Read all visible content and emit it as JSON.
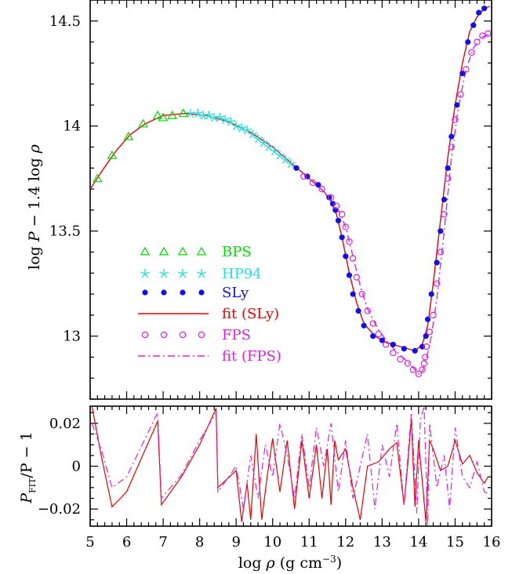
{
  "chart_data": [
    {
      "type": "line",
      "ylabel": "log P − 1.4 log ρ",
      "xlim": [
        5,
        16
      ],
      "ylim": [
        12.7,
        14.6
      ],
      "xticks": [
        5,
        6,
        7,
        8,
        9,
        10,
        11,
        12,
        13,
        14,
        15,
        16
      ],
      "yticks": [
        13,
        13.5,
        14,
        14.5
      ],
      "ytick_labels": [
        "13",
        "13.5",
        "14",
        "14.5"
      ],
      "series": [
        {
          "name": "BPS",
          "marker": "triangle",
          "color": "#00dd00",
          "x": [
            5.2,
            5.6,
            6.05,
            6.45,
            6.85,
            7.0,
            7.25,
            7.55
          ],
          "y": [
            13.75,
            13.86,
            13.95,
            14.01,
            14.05,
            14.04,
            14.05,
            14.06
          ]
        },
        {
          "name": "HP94",
          "marker": "star",
          "color": "#22e0e0",
          "x": [
            7.75,
            7.95,
            8.1,
            8.25,
            8.4,
            8.55,
            8.7,
            8.85,
            9.0,
            9.15,
            9.3,
            9.45,
            9.6,
            9.75,
            9.9,
            10.05,
            10.2,
            10.35,
            10.5
          ],
          "y": [
            14.06,
            14.06,
            14.05,
            14.05,
            14.04,
            14.04,
            14.03,
            14.02,
            14.0,
            13.99,
            13.98,
            13.96,
            13.94,
            13.92,
            13.9,
            13.88,
            13.86,
            13.84,
            13.82
          ]
        },
        {
          "name": "SLy",
          "marker": "filled-circle",
          "color": "#1010ee",
          "x": [
            10.65,
            10.95,
            11.25,
            11.55,
            11.65,
            11.72,
            11.8,
            11.9,
            12.0,
            12.1,
            12.2,
            12.35,
            12.5,
            12.75,
            13.0,
            13.3,
            13.6,
            13.9,
            14.1,
            14.2,
            14.25,
            14.35,
            14.5,
            14.6,
            14.7,
            14.8,
            14.9,
            15.05,
            15.2,
            15.35,
            15.5,
            15.65,
            15.8
          ],
          "y": [
            13.8,
            13.76,
            13.72,
            13.66,
            13.63,
            13.6,
            13.55,
            13.47,
            13.38,
            13.29,
            13.2,
            13.12,
            13.05,
            13.0,
            12.98,
            12.96,
            12.94,
            12.93,
            12.95,
            13.0,
            13.08,
            13.2,
            13.35,
            13.5,
            13.65,
            13.8,
            13.95,
            14.1,
            14.25,
            14.4,
            14.48,
            14.54,
            14.56
          ]
        },
        {
          "name": "fit (SLy)",
          "marker": "none",
          "style": "solid",
          "color": "#ee0000",
          "x": [
            5.0,
            5.3,
            5.7,
            6.1,
            6.5,
            7.0,
            7.6,
            8.2,
            8.8,
            9.4,
            10.0,
            10.6,
            11.0,
            11.4,
            11.6,
            11.75,
            11.9,
            12.1,
            12.3,
            12.5,
            12.8,
            13.1,
            13.5,
            13.9,
            14.1,
            14.25,
            14.4,
            14.6,
            14.8,
            15.0,
            15.2,
            15.4,
            15.6,
            15.8,
            15.95
          ],
          "y": [
            13.7,
            13.78,
            13.88,
            13.96,
            14.01,
            14.05,
            14.06,
            14.05,
            14.02,
            13.97,
            13.9,
            13.81,
            13.75,
            13.69,
            13.64,
            13.58,
            13.47,
            13.3,
            13.16,
            13.06,
            13.0,
            12.97,
            12.95,
            12.93,
            12.96,
            13.05,
            13.25,
            13.55,
            13.85,
            14.1,
            14.3,
            14.45,
            14.52,
            14.56,
            14.57
          ]
        },
        {
          "name": "FPS",
          "marker": "open-circle",
          "color": "#e020e0",
          "x": [
            10.85,
            11.1,
            11.35,
            11.6,
            11.75,
            11.9,
            12.0,
            12.1,
            12.2,
            12.3,
            12.45,
            12.6,
            12.75,
            12.9,
            13.1,
            13.3,
            13.5,
            13.7,
            13.85,
            14.0,
            14.1,
            14.15,
            14.18,
            14.22,
            14.3,
            14.4,
            14.5,
            14.6,
            14.7,
            14.8,
            14.9,
            15.0,
            15.15,
            15.3,
            15.45,
            15.6,
            15.75,
            15.9
          ],
          "y": [
            13.76,
            13.73,
            13.7,
            13.66,
            13.62,
            13.58,
            13.52,
            13.45,
            13.37,
            13.28,
            13.2,
            13.12,
            13.06,
            13.01,
            12.96,
            12.92,
            12.89,
            12.87,
            12.84,
            12.82,
            12.84,
            12.87,
            12.9,
            12.95,
            13.02,
            13.1,
            13.25,
            13.4,
            13.58,
            13.75,
            13.9,
            14.03,
            14.15,
            14.27,
            14.35,
            14.4,
            14.43,
            14.44
          ]
        },
        {
          "name": "fit (FPS)",
          "marker": "none",
          "style": "dashdot",
          "color": "#e020e0",
          "x": [
            10.6,
            11.0,
            11.4,
            11.8,
            12.0,
            12.2,
            12.4,
            12.6,
            12.9,
            13.2,
            13.5,
            13.8,
            14.0,
            14.1,
            14.2,
            14.35,
            14.5,
            14.7,
            14.9,
            15.1,
            15.3,
            15.5,
            15.7,
            15.95
          ],
          "y": [
            13.81,
            13.75,
            13.69,
            13.6,
            13.52,
            13.38,
            13.24,
            13.13,
            13.03,
            12.96,
            12.91,
            12.86,
            12.82,
            12.83,
            12.88,
            13.0,
            13.18,
            13.5,
            13.85,
            14.1,
            14.27,
            14.37,
            14.42,
            14.44
          ]
        }
      ]
    },
    {
      "type": "line",
      "xlabel": "log ρ (g cm⁻³)",
      "ylabel": "P_FIT / P − 1",
      "xlim": [
        5,
        16
      ],
      "ylim": [
        -0.028,
        0.028
      ],
      "xticks": [
        5,
        6,
        7,
        8,
        9,
        10,
        11,
        12,
        13,
        14,
        15,
        16
      ],
      "xtick_labels": [
        "5",
        "6",
        "7",
        "8",
        "9",
        "10",
        "11",
        "12",
        "13",
        "14",
        "15",
        "16"
      ],
      "yticks": [
        -0.02,
        0,
        0.02
      ],
      "ytick_labels": [
        "−0.02",
        "0",
        "0.02"
      ],
      "series": [
        {
          "name": "fit (SLy)",
          "style": "solid",
          "color": "#ee0000",
          "x": [
            5.05,
            5.3,
            5.6,
            6.0,
            6.85,
            6.95,
            7.5,
            8.0,
            8.45,
            8.5,
            9.0,
            9.15,
            9.3,
            9.4,
            9.55,
            9.7,
            9.85,
            10.0,
            10.2,
            10.4,
            10.6,
            10.8,
            11.0,
            11.2,
            11.35,
            11.5,
            11.6,
            11.7,
            11.8,
            12.0,
            12.2,
            12.4,
            12.6,
            12.9,
            13.2,
            13.4,
            13.6,
            13.7,
            13.8,
            13.9,
            14.0,
            14.2,
            14.3,
            14.4,
            14.6,
            14.8,
            15.0,
            15.2,
            15.4,
            15.6,
            15.8,
            15.9
          ],
          "y": [
            0.028,
            0.005,
            -0.019,
            -0.012,
            0.021,
            -0.018,
            -0.005,
            0.01,
            0.027,
            -0.01,
            -0.002,
            -0.026,
            -0.008,
            -0.025,
            0.015,
            -0.025,
            -0.005,
            0.013,
            -0.012,
            0.012,
            -0.02,
            0.012,
            -0.015,
            0.01,
            -0.015,
            0.008,
            -0.018,
            0.012,
            0.003,
            0.008,
            -0.01,
            -0.025,
            0.0,
            0.002,
            0.008,
            0.011,
            -0.018,
            0.0,
            0.022,
            -0.019,
            0.012,
            -0.026,
            0.012,
            0.008,
            -0.002,
            0.0,
            0.012,
            0.001,
            0.005,
            -0.003,
            -0.008,
            -0.005
          ]
        },
        {
          "name": "fit (FPS)",
          "style": "dashdot",
          "color": "#e020e0",
          "x": [
            5.05,
            5.3,
            5.6,
            6.0,
            6.85,
            6.95,
            7.5,
            8.0,
            8.45,
            8.5,
            9.0,
            9.2,
            9.4,
            9.6,
            9.8,
            10.0,
            10.2,
            10.4,
            10.6,
            10.8,
            11.0,
            11.2,
            11.4,
            11.6,
            11.8,
            12.0,
            12.2,
            12.4,
            12.6,
            12.8,
            13.0,
            13.2,
            13.4,
            13.6,
            13.8,
            13.95,
            14.05,
            14.15,
            14.25,
            14.3,
            14.5,
            14.7,
            14.85,
            15.0,
            15.2,
            15.4,
            15.6,
            15.8,
            15.95
          ],
          "y": [
            0.02,
            0.008,
            -0.01,
            -0.005,
            0.025,
            -0.015,
            -0.004,
            0.012,
            0.025,
            -0.012,
            0.0,
            -0.02,
            0.005,
            -0.015,
            0.01,
            -0.005,
            0.02,
            0.005,
            -0.015,
            0.015,
            -0.01,
            0.018,
            0.0,
            0.02,
            -0.012,
            0.012,
            -0.015,
            0.0,
            0.015,
            -0.02,
            0.01,
            -0.005,
            0.02,
            -0.018,
            0.025,
            -0.022,
            0.022,
            0.028,
            -0.028,
            0.02,
            -0.01,
            0.005,
            -0.02,
            0.018,
            -0.005,
            -0.01,
            0.002,
            -0.012,
            -0.013
          ]
        }
      ]
    }
  ],
  "labels": {
    "top_ylabel_pre": "log ",
    "top_ylabel_P": "P",
    "top_ylabel_post": " − 1.4 log ",
    "top_ylabel_rho": "ρ",
    "bottom_ylabel_P": "P",
    "bottom_ylabel_sub": "FIT",
    "bottom_ylabel_post": "/P − 1",
    "xlabel_pre": "log ",
    "xlabel_rho": "ρ",
    "xlabel_post": " (g cm",
    "xlabel_exp": "−3",
    "xlabel_close": ")"
  }
}
